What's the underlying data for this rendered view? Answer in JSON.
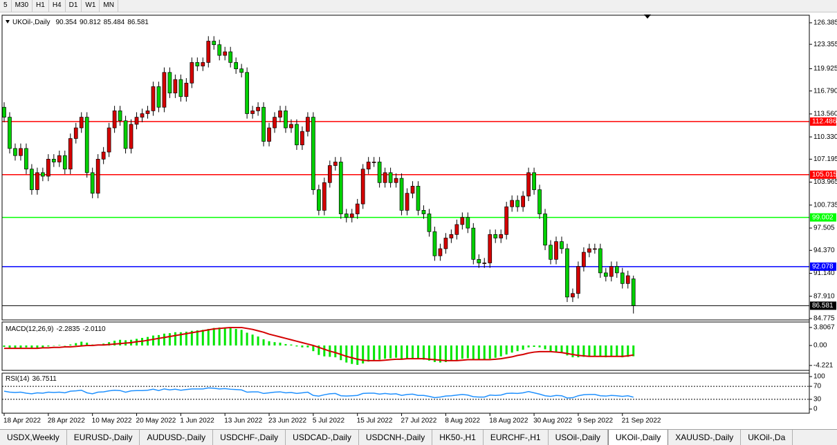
{
  "toolbar": {
    "timeframes": [
      "5",
      "M30",
      "H1",
      "H4",
      "D1",
      "W1",
      "MN"
    ]
  },
  "chart_data": [
    {
      "type": "candlestick",
      "symbol": "UKOil-,Daily",
      "categories": [
        "18 Apr 2022",
        null,
        null,
        null,
        null,
        null,
        null,
        null,
        "28 Apr 2022",
        null,
        null,
        null,
        null,
        null,
        null,
        null,
        "10 May 2022",
        null,
        null,
        null,
        null,
        null,
        null,
        null,
        "20 May 2022",
        null,
        null,
        null,
        null,
        null,
        null,
        null,
        "1 Jun 2022",
        null,
        null,
        null,
        null,
        null,
        null,
        null,
        "13 Jun 2022",
        null,
        null,
        null,
        null,
        null,
        null,
        null,
        "23 Jun 2022",
        null,
        null,
        null,
        null,
        null,
        null,
        null,
        "5 Jul 2022",
        null,
        null,
        null,
        null,
        null,
        null,
        null,
        "15 Jul 2022",
        null,
        null,
        null,
        null,
        null,
        null,
        null,
        "27 Jul 2022",
        null,
        null,
        null,
        null,
        null,
        null,
        null,
        "8 Aug 2022",
        null,
        null,
        null,
        null,
        null,
        null,
        null,
        "18 Aug 2022",
        null,
        null,
        null,
        null,
        null,
        null,
        null,
        "30 Aug 2022",
        null,
        null,
        null,
        null,
        null,
        null,
        null,
        "9 Sep 2022",
        null,
        null,
        null,
        null,
        null,
        null,
        null,
        "21 Sep 2022",
        null,
        null
      ],
      "open": [
        114.5,
        113.1,
        108.7,
        107.7,
        108.7,
        105.8,
        102.9,
        105.3,
        104.8,
        107.2,
        106.8,
        107.7,
        105.8,
        110.1,
        111.6,
        113.1,
        105.3,
        102.4,
        107.2,
        108.2,
        111.6,
        114.0,
        112.6,
        108.7,
        112.1,
        113.1,
        113.6,
        114.0,
        117.4,
        114.5,
        119.4,
        116.5,
        118.4,
        116.0,
        117.9,
        120.8,
        120.3,
        120.8,
        123.8,
        123.3,
        121.8,
        122.3,
        120.8,
        119.9,
        119.4,
        113.6,
        114.0,
        114.5,
        109.7,
        111.6,
        113.1,
        114.0,
        111.6,
        112.1,
        109.2,
        111.1,
        113.1,
        102.9,
        100.0,
        103.9,
        106.3,
        106.8,
        99.5,
        99.0,
        99.5,
        100.9,
        105.8,
        106.8,
        106.8,
        103.9,
        105.3,
        103.9,
        104.5,
        100.0,
        102.4,
        103.4,
        100.0,
        99.5,
        97.0,
        93.6,
        94.6,
        96.1,
        96.6,
        98.0,
        99.0,
        97.5,
        93.1,
        92.6,
        92.6,
        96.6,
        96.1,
        96.6,
        100.5,
        101.4,
        100.5,
        102.0,
        105.3,
        102.9,
        99.5,
        95.1,
        93.1,
        95.6,
        94.6,
        87.8,
        88.3,
        92.1,
        94.1,
        94.6,
        94.6,
        91.2,
        90.7,
        92.1,
        91.2,
        89.7,
        90.354
      ],
      "high": [
        115.2,
        113.8,
        109.4,
        109.4,
        109.4,
        106.5,
        106.0,
        106.0,
        107.9,
        107.9,
        108.4,
        108.4,
        110.8,
        112.3,
        113.8,
        113.8,
        106.0,
        107.9,
        108.9,
        112.3,
        114.7,
        114.7,
        113.3,
        112.8,
        113.8,
        114.3,
        114.7,
        118.1,
        118.1,
        120.1,
        120.1,
        119.1,
        119.1,
        118.6,
        121.5,
        121.5,
        121.5,
        124.5,
        124.5,
        124.0,
        123.0,
        123.0,
        121.5,
        120.6,
        120.1,
        114.7,
        115.2,
        115.2,
        112.3,
        113.8,
        114.7,
        114.7,
        112.8,
        112.8,
        111.8,
        113.8,
        113.8,
        103.6,
        104.6,
        107.0,
        107.5,
        107.5,
        100.2,
        100.2,
        101.6,
        106.5,
        107.5,
        107.5,
        107.5,
        106.0,
        106.0,
        105.2,
        105.2,
        103.1,
        104.1,
        104.1,
        100.7,
        100.2,
        97.7,
        95.3,
        96.8,
        97.3,
        98.7,
        99.7,
        99.7,
        98.2,
        93.8,
        93.3,
        97.3,
        97.3,
        97.3,
        101.2,
        102.1,
        102.1,
        102.7,
        106.0,
        106.0,
        103.6,
        100.2,
        95.8,
        96.3,
        96.3,
        95.3,
        89.0,
        92.8,
        94.8,
        95.3,
        95.3,
        95.3,
        91.9,
        92.8,
        92.8,
        91.9,
        91.5,
        90.812
      ],
      "low": [
        112.4,
        108.0,
        107.0,
        107.0,
        105.1,
        102.2,
        102.2,
        104.1,
        104.1,
        106.1,
        106.1,
        105.1,
        105.1,
        109.4,
        110.9,
        104.6,
        101.7,
        101.7,
        106.5,
        107.5,
        110.9,
        111.9,
        108.0,
        108.0,
        111.4,
        112.4,
        112.9,
        113.3,
        113.8,
        113.8,
        115.8,
        115.8,
        115.3,
        115.3,
        117.2,
        119.6,
        119.6,
        120.1,
        122.6,
        121.1,
        121.1,
        120.1,
        119.2,
        118.7,
        112.9,
        112.9,
        113.3,
        109.0,
        109.0,
        110.9,
        112.4,
        110.9,
        110.9,
        108.5,
        108.5,
        110.4,
        102.2,
        99.3,
        99.3,
        103.2,
        105.6,
        98.8,
        98.3,
        98.3,
        98.8,
        100.2,
        105.1,
        106.1,
        103.2,
        103.2,
        103.2,
        103.2,
        99.3,
        99.3,
        101.7,
        99.3,
        98.8,
        96.3,
        92.9,
        92.9,
        93.9,
        95.4,
        95.9,
        97.3,
        96.8,
        92.4,
        91.9,
        91.9,
        91.9,
        95.4,
        95.4,
        95.9,
        99.8,
        99.8,
        99.8,
        101.3,
        102.2,
        98.8,
        94.4,
        92.4,
        92.4,
        93.9,
        87.1,
        87.1,
        87.6,
        91.4,
        93.4,
        93.9,
        90.5,
        90.0,
        90.0,
        90.5,
        89.0,
        89.0,
        85.484
      ],
      "close": [
        113.1,
        108.7,
        107.7,
        108.7,
        105.8,
        102.9,
        105.3,
        104.8,
        107.2,
        106.8,
        107.7,
        105.8,
        110.1,
        111.6,
        113.1,
        105.3,
        102.4,
        107.2,
        108.2,
        111.6,
        114.0,
        112.6,
        108.7,
        112.1,
        113.1,
        113.6,
        114.0,
        117.4,
        114.5,
        119.4,
        116.5,
        118.4,
        116.0,
        117.9,
        120.8,
        120.3,
        120.8,
        123.8,
        123.3,
        121.8,
        122.3,
        120.8,
        119.9,
        119.4,
        113.6,
        114.0,
        114.5,
        109.7,
        111.6,
        113.1,
        114.0,
        111.6,
        112.1,
        109.2,
        111.1,
        113.1,
        102.9,
        100.0,
        103.9,
        106.3,
        106.8,
        99.5,
        99.0,
        99.5,
        100.9,
        105.8,
        106.8,
        106.8,
        103.9,
        105.3,
        103.9,
        104.5,
        100.0,
        102.4,
        103.4,
        100.0,
        99.5,
        97.0,
        93.6,
        94.6,
        96.1,
        96.6,
        98.0,
        99.0,
        97.5,
        93.1,
        92.6,
        92.6,
        96.6,
        96.1,
        96.6,
        100.5,
        101.4,
        100.5,
        102.0,
        105.3,
        102.9,
        99.5,
        95.1,
        93.1,
        95.6,
        94.6,
        87.8,
        88.3,
        92.1,
        94.1,
        94.6,
        94.6,
        91.2,
        90.7,
        92.1,
        91.2,
        89.7,
        90.8,
        86.581
      ],
      "bull_color": "#d40000",
      "bear_color": "#00d000",
      "ylim": [
        84.58,
        127.45
      ],
      "yticks": [
        126.385,
        123.355,
        119.925,
        {
          "value": 116.79,
          "label": "116.790"
        },
        {
          "value": 113.56,
          "label": "113.560"
        },
        {
          "value": 110.33,
          "label": "110.330"
        },
        107.195,
        103.965,
        100.735,
        97.505,
        {
          "value": 94.37,
          "label": "94.370"
        },
        {
          "value": 91.14,
          "label": "91.140"
        },
        {
          "value": 87.91,
          "label": "87.910"
        },
        84.775
      ],
      "hlines": [
        {
          "value": 112.486,
          "color": "#ff0000"
        },
        {
          "value": 105.015,
          "color": "#ff0000"
        },
        {
          "value": 99.002,
          "color": "#00ff00"
        },
        {
          "value": 92.078,
          "color": "#0000ff"
        }
      ],
      "price_line_color": "#000000"
    },
    {
      "type": "macd",
      "title": "MACD(12,26,9)",
      "signal_readout": "-2.0110",
      "histogram": [
        -0.3,
        -0.5,
        -0.6,
        -0.5,
        -0.4,
        -0.6,
        -0.5,
        -0.4,
        -0.2,
        0.0,
        0.1,
        0.0,
        0.2,
        0.5,
        0.8,
        0.6,
        0.2,
        0.2,
        0.4,
        0.7,
        1.0,
        1.2,
        1.1,
        1.2,
        1.4,
        1.6,
        1.8,
        2.1,
        2.2,
        2.5,
        2.6,
        2.8,
        2.8,
        2.9,
        3.1,
        3.2,
        3.3,
        3.5,
        3.7,
        3.8,
        3.8,
        3.7,
        3.5,
        3.3,
        2.7,
        2.3,
        1.9,
        1.3,
        0.9,
        0.7,
        0.6,
        0.3,
        0.2,
        -0.2,
        -0.4,
        -0.4,
        -1.2,
        -2.0,
        -2.3,
        -2.4,
        -2.5,
        -3.1,
        -3.6,
        -3.9,
        -4.1,
        -3.8,
        -3.4,
        -3.1,
        -3.0,
        -2.8,
        -2.7,
        -2.6,
        -2.8,
        -2.8,
        -2.7,
        -2.8,
        -3.0,
        -3.2,
        -3.5,
        -3.6,
        -3.5,
        -3.3,
        -3.1,
        -2.8,
        -2.7,
        -2.9,
        -3.1,
        -3.1,
        -2.8,
        -2.6,
        -2.3,
        -1.9,
        -1.5,
        -1.2,
        -0.9,
        -0.4,
        -0.3,
        -0.4,
        -0.8,
        -1.3,
        -1.4,
        -1.5,
        -2.1,
        -2.5,
        -2.5,
        -2.4,
        -2.3,
        -2.2,
        -2.4,
        -2.5,
        -2.4,
        -2.4,
        -2.5,
        -2.4,
        -2.2835
      ],
      "signal": [
        -0.6,
        -0.6,
        -0.6,
        -0.6,
        -0.6,
        -0.6,
        -0.6,
        -0.5,
        -0.5,
        -0.4,
        -0.4,
        -0.3,
        -0.3,
        -0.2,
        -0.1,
        0.0,
        0.0,
        0.1,
        0.1,
        0.2,
        0.3,
        0.4,
        0.5,
        0.6,
        0.8,
        0.9,
        1.1,
        1.3,
        1.5,
        1.7,
        1.9,
        2.1,
        2.3,
        2.5,
        2.7,
        2.9,
        3.1,
        3.3,
        3.5,
        3.6,
        3.7,
        3.8,
        3.8,
        3.8,
        3.6,
        3.4,
        3.1,
        2.8,
        2.4,
        2.1,
        1.8,
        1.5,
        1.2,
        0.9,
        0.6,
        0.3,
        0.0,
        -0.4,
        -0.8,
        -1.2,
        -1.5,
        -1.9,
        -2.3,
        -2.6,
        -2.9,
        -3.1,
        -3.2,
        -3.2,
        -3.2,
        -3.1,
        -3.0,
        -2.9,
        -2.9,
        -2.8,
        -2.8,
        -2.8,
        -2.8,
        -2.9,
        -3.0,
        -3.1,
        -3.2,
        -3.2,
        -3.2,
        -3.1,
        -3.0,
        -3.0,
        -3.0,
        -3.0,
        -3.0,
        -2.9,
        -2.8,
        -2.6,
        -2.4,
        -2.1,
        -1.9,
        -1.6,
        -1.4,
        -1.3,
        -1.3,
        -1.3,
        -1.4,
        -1.5,
        -1.7,
        -1.9,
        -2.1,
        -2.2,
        -2.3,
        -2.3,
        -2.3,
        -2.3,
        -2.3,
        -2.3,
        -2.3,
        -2.2,
        -2.011
      ],
      "histogram_color": "#00e600",
      "signal_color": "#d40000",
      "ylim": [
        -5.26,
        4.96
      ],
      "yticks": [
        3.8067,
        {
          "value": 0,
          "label": "0.00"
        },
        -4.221
      ]
    },
    {
      "type": "rsi",
      "title": "RSI(14)",
      "values": [
        55,
        52,
        51,
        52,
        49,
        47,
        50,
        49,
        52,
        51,
        52,
        50,
        55,
        56,
        58,
        50,
        47,
        52,
        53,
        56,
        58,
        57,
        52,
        56,
        57,
        57,
        58,
        61,
        57,
        62,
        59,
        61,
        58,
        60,
        62,
        62,
        62,
        65,
        64,
        62,
        63,
        61,
        60,
        59,
        52,
        53,
        53,
        48,
        50,
        52,
        53,
        50,
        51,
        48,
        50,
        52,
        42,
        40,
        44,
        47,
        48,
        41,
        40,
        41,
        42,
        48,
        49,
        49,
        46,
        48,
        46,
        47,
        42,
        45,
        46,
        42,
        42,
        39,
        35,
        37,
        40,
        41,
        43,
        45,
        43,
        38,
        37,
        37,
        43,
        42,
        43,
        48,
        49,
        48,
        50,
        54,
        50,
        46,
        41,
        39,
        42,
        41,
        34,
        35,
        41,
        44,
        45,
        45,
        41,
        40,
        42,
        41,
        39,
        41,
        36.7511
      ],
      "color": "#1e90ff",
      "levels": [
        70,
        30
      ],
      "ylim": [
        -12.8,
        110.6
      ],
      "yticks": [
        100,
        70,
        30,
        0
      ]
    }
  ],
  "tabs": [
    "USDX,Weekly",
    "EURUSD-,Daily",
    "AUDUSD-,Daily",
    "USDCHF-,Daily",
    "USDCAD-,Daily",
    "USDCNH-,Daily",
    "HK50-,H1",
    "EURCHF-,H1",
    "USOil-,Daily",
    "UKOil-,Daily",
    "XAUUSD-,Daily",
    "UKOil-,Da"
  ],
  "active_tab": 9
}
